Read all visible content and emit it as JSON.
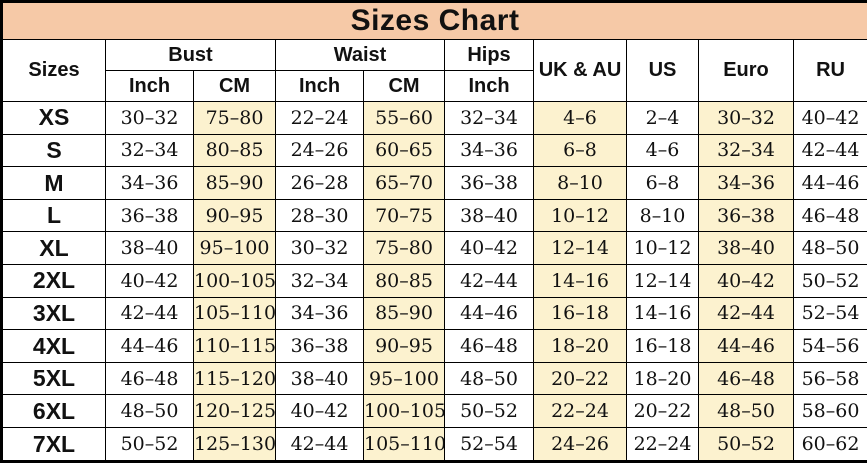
{
  "title": "Sizes Chart",
  "colors": {
    "title_bg": "#f6c9a7",
    "highlight_bg": "#fcf2cf",
    "cell_bg": "#ffffff",
    "border": "#000000"
  },
  "chart_data": {
    "type": "table",
    "title": "Sizes Chart",
    "highlighted_columns": [
      "bust_cm",
      "waist_cm",
      "uk_au",
      "euro"
    ]
  },
  "table": {
    "header": {
      "sizes": "Sizes",
      "bust": "Bust",
      "waist": "Waist",
      "hips": "Hips",
      "uk_au": "UK & AU",
      "us": "US",
      "euro": "Euro",
      "ru": "RU",
      "subheaders": [
        "Inch",
        "CM",
        "Inch",
        "CM",
        "Inch"
      ]
    },
    "rows": [
      {
        "size": "XS",
        "bust_inch": "30–32",
        "bust_cm": "75–80",
        "waist_inch": "22–24",
        "waist_cm": "55–60",
        "hips_inch": "32–34",
        "uk_au": "4–6",
        "us": "2–4",
        "euro": "30–32",
        "ru": "40–42"
      },
      {
        "size": "S",
        "bust_inch": "32–34",
        "bust_cm": "80–85",
        "waist_inch": "24–26",
        "waist_cm": "60–65",
        "hips_inch": "34–36",
        "uk_au": "6–8",
        "us": "4–6",
        "euro": "32–34",
        "ru": "42–44"
      },
      {
        "size": "M",
        "bust_inch": "34–36",
        "bust_cm": "85–90",
        "waist_inch": "26–28",
        "waist_cm": "65–70",
        "hips_inch": "36–38",
        "uk_au": "8–10",
        "us": "6–8",
        "euro": "34–36",
        "ru": "44–46"
      },
      {
        "size": "L",
        "bust_inch": "36–38",
        "bust_cm": "90–95",
        "waist_inch": "28–30",
        "waist_cm": "70–75",
        "hips_inch": "38–40",
        "uk_au": "10–12",
        "us": "8–10",
        "euro": "36–38",
        "ru": "46–48"
      },
      {
        "size": "XL",
        "bust_inch": "38–40",
        "bust_cm": "95–100",
        "waist_inch": "30–32",
        "waist_cm": "75–80",
        "hips_inch": "40–42",
        "uk_au": "12–14",
        "us": "10–12",
        "euro": "38–40",
        "ru": "48–50"
      },
      {
        "size": "2XL",
        "bust_inch": "40–42",
        "bust_cm": "100–105",
        "waist_inch": "32–34",
        "waist_cm": "80–85",
        "hips_inch": "42–44",
        "uk_au": "14–16",
        "us": "12–14",
        "euro": "40–42",
        "ru": "50–52"
      },
      {
        "size": "3XL",
        "bust_inch": "42–44",
        "bust_cm": "105–110",
        "waist_inch": "34–36",
        "waist_cm": "85–90",
        "hips_inch": "44–46",
        "uk_au": "16–18",
        "us": "14–16",
        "euro": "42–44",
        "ru": "52–54"
      },
      {
        "size": "4XL",
        "bust_inch": "44–46",
        "bust_cm": "110–115",
        "waist_inch": "36–38",
        "waist_cm": "90–95",
        "hips_inch": "46–48",
        "uk_au": "18–20",
        "us": "16–18",
        "euro": "44–46",
        "ru": "54–56"
      },
      {
        "size": "5XL",
        "bust_inch": "46–48",
        "bust_cm": "115–120",
        "waist_inch": "38–40",
        "waist_cm": "95–100",
        "hips_inch": "48–50",
        "uk_au": "20–22",
        "us": "18–20",
        "euro": "46–48",
        "ru": "56–58"
      },
      {
        "size": "6XL",
        "bust_inch": "48–50",
        "bust_cm": "120–125",
        "waist_inch": "40–42",
        "waist_cm": "100–105",
        "hips_inch": "50–52",
        "uk_au": "22–24",
        "us": "20–22",
        "euro": "48–50",
        "ru": "58–60"
      },
      {
        "size": "7XL",
        "bust_inch": "50–52",
        "bust_cm": "125–130",
        "waist_inch": "42–44",
        "waist_cm": "105–110",
        "hips_inch": "52–54",
        "uk_au": "24–26",
        "us": "22–24",
        "euro": "50–52",
        "ru": "60–62"
      }
    ]
  }
}
